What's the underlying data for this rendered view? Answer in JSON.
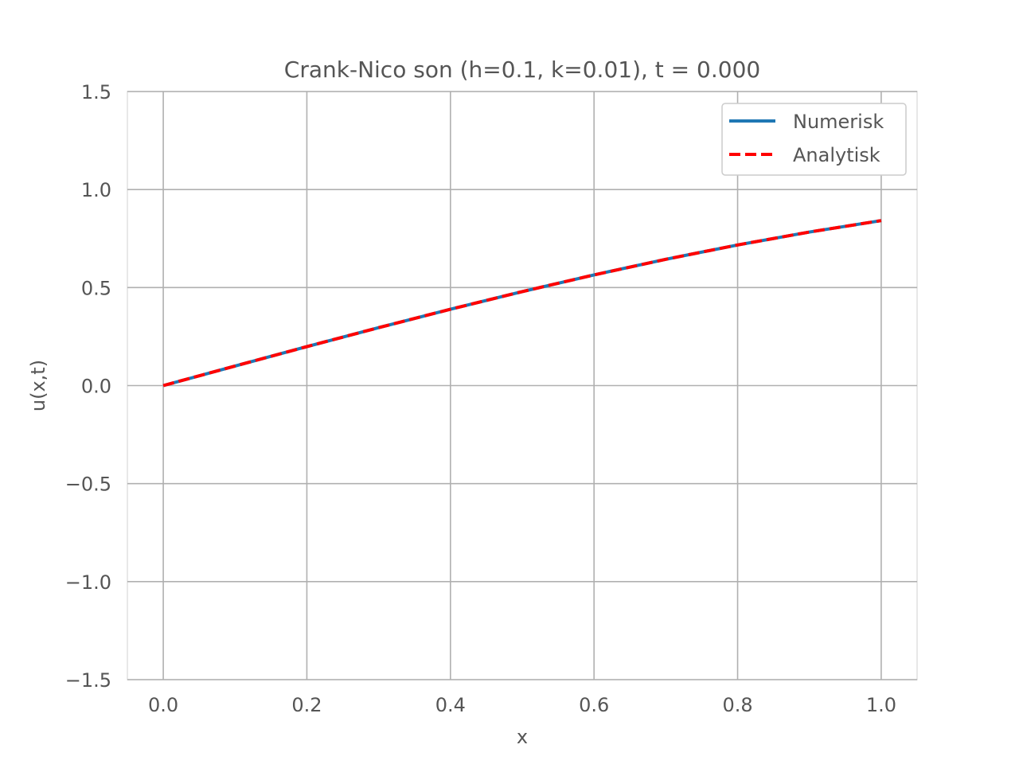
{
  "chart_data": {
    "type": "line",
    "title": "Crank-Nico son (h=0.1, k=0.01), t = 0.000",
    "xlabel": "x",
    "ylabel": "u(x,t)",
    "xlim": [
      -0.05,
      1.05
    ],
    "ylim": [
      -1.5,
      1.5
    ],
    "xticks": [
      0.0,
      0.2,
      0.4,
      0.6,
      0.8,
      1.0
    ],
    "xtick_labels": [
      "0.0",
      "0.2",
      "0.4",
      "0.6",
      "0.8",
      "1.0"
    ],
    "yticks": [
      -1.5,
      -1.0,
      -0.5,
      0.0,
      0.5,
      1.0,
      1.5
    ],
    "ytick_labels": [
      "−1.5",
      "−1.0",
      "−0.5",
      "0.0",
      "0.5",
      "1.0",
      "1.5"
    ],
    "grid": true,
    "legend_position": "top-right",
    "x": [
      0.0,
      0.1,
      0.2,
      0.3,
      0.4,
      0.5,
      0.6,
      0.7,
      0.8,
      0.9,
      1.0
    ],
    "series": [
      {
        "name": "Numerisk",
        "style": "solid",
        "color": "#1f77b4",
        "values": [
          0.0,
          0.0998,
          0.1987,
          0.2955,
          0.3894,
          0.4794,
          0.5646,
          0.6442,
          0.7174,
          0.7833,
          0.8415
        ]
      },
      {
        "name": "Analytisk",
        "style": "dashed",
        "color": "#ff0000",
        "values": [
          0.0,
          0.0998,
          0.1987,
          0.2955,
          0.3894,
          0.4794,
          0.5646,
          0.6442,
          0.7174,
          0.7833,
          0.8415
        ]
      }
    ]
  }
}
